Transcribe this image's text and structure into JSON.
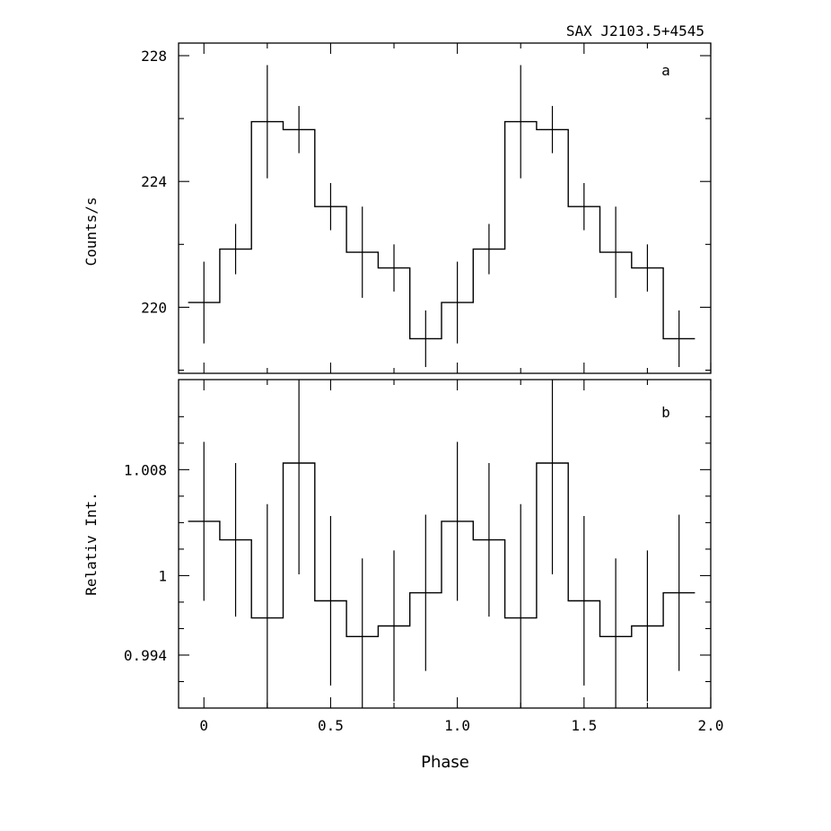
{
  "title": "SAX J2103.5+4545",
  "xlabel": "Phase",
  "chart_data": [
    {
      "type": "line",
      "panel_label": "a",
      "ylabel": "Counts/s",
      "xlim": [
        -0.1,
        2.0
      ],
      "ylim": [
        217.9,
        228.4
      ],
      "x_tick_labels": [
        "0",
        "0.5",
        "1.0",
        "1.5",
        "2.0"
      ],
      "y_tick_labels": [
        "220",
        "224",
        "228"
      ],
      "y_tick_values": [
        220,
        224,
        228
      ],
      "bin_width": 0.125,
      "series": [
        {
          "x": [
            0,
            0.125,
            0.25,
            0.375,
            0.5,
            0.625,
            0.75,
            0.875,
            1.0,
            1.125,
            1.25,
            1.375,
            1.5,
            1.625,
            1.75,
            1.875
          ],
          "y": [
            220.15,
            221.85,
            225.9,
            225.65,
            223.2,
            221.75,
            221.25,
            219.0,
            220.15,
            221.85,
            225.9,
            225.65,
            223.2,
            221.75,
            221.25,
            219.0
          ],
          "err": [
            1.3,
            0.8,
            1.8,
            0.75,
            0.75,
            1.45,
            0.75,
            0.9,
            1.3,
            0.8,
            1.8,
            0.75,
            0.75,
            1.45,
            0.75,
            0.9
          ]
        }
      ]
    },
    {
      "type": "line",
      "panel_label": "b",
      "ylabel": "Relativ Int.",
      "xlim": [
        -0.1,
        2.0
      ],
      "ylim": [
        0.99,
        1.0148
      ],
      "x_tick_labels": [
        "0",
        "0.5",
        "1.0",
        "1.5",
        "2.0"
      ],
      "y_tick_labels": [
        "0.994",
        "1",
        "1.008"
      ],
      "y_tick_values": [
        0.994,
        1.0,
        1.008
      ],
      "bin_width": 0.125,
      "series": [
        {
          "x": [
            0,
            0.125,
            0.25,
            0.375,
            0.5,
            0.625,
            0.75,
            0.875,
            1.0,
            1.125,
            1.25,
            1.375,
            1.5,
            1.625,
            1.75,
            1.875
          ],
          "y": [
            1.0041,
            1.0027,
            0.9968,
            1.0085,
            0.9981,
            0.9954,
            0.9962,
            0.9987,
            1.0041,
            1.0027,
            0.9968,
            1.0085,
            0.9981,
            0.9954,
            0.9962,
            0.9987
          ],
          "err": [
            0.006,
            0.0058,
            0.0086,
            0.0084,
            0.0064,
            0.0059,
            0.0057,
            0.0059,
            0.006,
            0.0058,
            0.0086,
            0.0084,
            0.0064,
            0.0059,
            0.0057,
            0.0059
          ]
        }
      ]
    }
  ]
}
